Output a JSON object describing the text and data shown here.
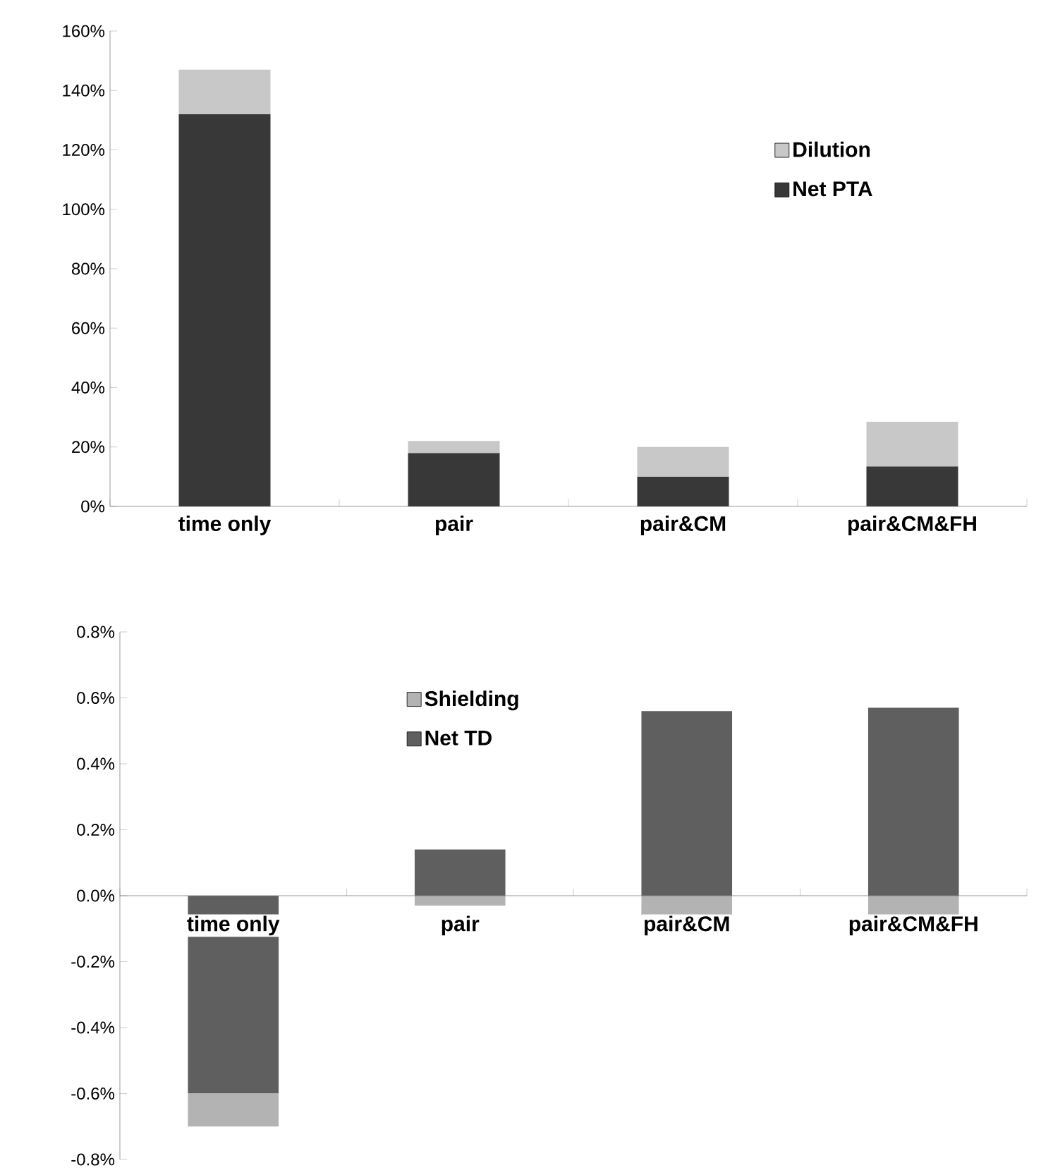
{
  "chart_data": [
    {
      "type": "bar",
      "stacked": true,
      "categories": [
        "time only",
        "pair",
        "pair&CM",
        "pair&CM&FH"
      ],
      "series": [
        {
          "name": "Net PTA",
          "color": "#383838",
          "values": [
            132,
            18,
            10,
            13.5
          ]
        },
        {
          "name": "Dilution",
          "color": "#c8c8c8",
          "values": [
            15,
            4,
            10,
            15
          ]
        }
      ],
      "ylim": [
        0,
        160
      ],
      "yticks": [
        {
          "value": 0,
          "label": "0%"
        },
        {
          "value": 20,
          "label": "20%"
        },
        {
          "value": 40,
          "label": "40%"
        },
        {
          "value": 60,
          "label": "60%"
        },
        {
          "value": 80,
          "label": "80%"
        },
        {
          "value": 100,
          "label": "100%"
        },
        {
          "value": 120,
          "label": "120%"
        },
        {
          "value": 140,
          "label": "140%"
        },
        {
          "value": 160,
          "label": "160%"
        }
      ],
      "grid": false,
      "legend": "top right"
    },
    {
      "type": "bar",
      "stacked": true,
      "categories": [
        "time only",
        "pair",
        "pair&CM",
        "pair&CM&FH"
      ],
      "series": [
        {
          "name": "Net TD",
          "color": "#5f5f5f",
          "values": [
            -0.6,
            0.14,
            0.56,
            0.57
          ]
        },
        {
          "name": "Shielding",
          "color": "#b3b3b3",
          "values": [
            -0.1,
            -0.03,
            -0.06,
            -0.06
          ]
        }
      ],
      "ylim": [
        -0.8,
        0.8
      ],
      "yticks": [
        {
          "value": -0.8,
          "label": "-0.8%"
        },
        {
          "value": -0.6,
          "label": "-0.6%"
        },
        {
          "value": -0.4,
          "label": "-0.4%"
        },
        {
          "value": -0.2,
          "label": "-0.2%"
        },
        {
          "value": 0,
          "label": "0.0%"
        },
        {
          "value": 0.2,
          "label": "0.2%"
        },
        {
          "value": 0.4,
          "label": "0.4%"
        },
        {
          "value": 0.6,
          "label": "0.6%"
        },
        {
          "value": 0.8,
          "label": "0.8%"
        }
      ],
      "grid": false,
      "legend": "top left"
    }
  ]
}
